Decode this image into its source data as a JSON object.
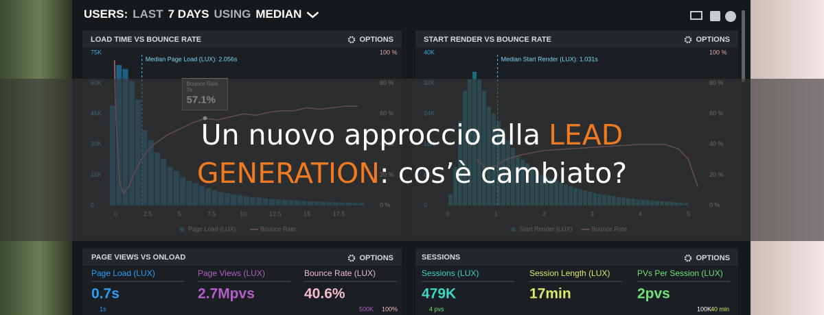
{
  "header": {
    "parts": [
      {
        "text": "USERS:",
        "color": "#ffffff"
      },
      {
        "text": "LAST",
        "color": "#a9b3b3"
      },
      {
        "text": "7 DAYS",
        "color": "#ffffff"
      },
      {
        "text": "USING",
        "color": "#a9b3b3"
      },
      {
        "text": "MEDIAN",
        "color": "#ffffff"
      }
    ]
  },
  "chart_data": [
    {
      "type": "histogram",
      "title": "LOAD TIME VS BOUNCE RATE",
      "options_label": "OPTIONS",
      "xlim": [
        -1,
        20
      ],
      "xticks": [
        0,
        2.5,
        5,
        7.5,
        10,
        12.5,
        15,
        17.5
      ],
      "ylim": [
        0,
        75000
      ],
      "yticks": [
        0,
        {
          "value": 15000,
          "label": "15K"
        },
        {
          "value": 30000,
          "label": "30K"
        },
        {
          "value": 45000,
          "label": "45K"
        },
        {
          "value": 60000,
          "label": "60K"
        },
        {
          "value": 75000,
          "label": "75K"
        }
      ],
      "y2lim": [
        0,
        100
      ],
      "y2ticks": [
        {
          "value": 0,
          "label": "0 %"
        },
        {
          "value": 20,
          "label": "20 %"
        },
        {
          "value": 40,
          "label": "40 %"
        },
        {
          "value": 60,
          "label": "60 %"
        },
        {
          "value": 80,
          "label": "80 %"
        },
        {
          "value": 100,
          "label": "100 %"
        }
      ],
      "series": [
        {
          "name": "Page Load (LUX)",
          "color": "#1f5f80",
          "bins": [
            -0.5,
            0,
            0.5,
            1,
            1.5,
            2,
            2.5,
            3,
            3.5,
            4,
            4.5,
            5,
            5.5,
            6,
            6.5,
            7,
            7.5,
            8,
            8.5,
            9,
            9.5,
            10,
            10.5,
            11,
            11.5,
            12,
            12.5,
            13,
            13.5,
            14,
            14.5,
            15,
            15.5,
            16,
            16.5,
            17,
            17.5,
            18,
            18.5,
            19,
            19.5
          ],
          "values": [
            49000,
            69000,
            67000,
            61000,
            52000,
            37000,
            32000,
            26000,
            23000,
            19000,
            17000,
            14000,
            12000,
            11000,
            9500,
            8500,
            7500,
            6500,
            6000,
            5500,
            5000,
            4500,
            4000,
            3800,
            3500,
            3200,
            3000,
            2800,
            2600,
            2400,
            2200,
            2000,
            1900,
            1800,
            1700,
            1600,
            1500,
            1400,
            1300,
            1200
          ]
        },
        {
          "name": "Bounce Rate",
          "color": "#a86b78",
          "axis": "y2",
          "x": [
            -0.1,
            0,
            0.3,
            0.6,
            1,
            1.5,
            2,
            2.5,
            3,
            4,
            5,
            6,
            7,
            8,
            9,
            10,
            11,
            12,
            13,
            14,
            15,
            16,
            17,
            18,
            19
          ],
          "values": [
            95,
            60,
            15,
            8,
            12,
            22,
            30,
            36,
            40,
            46,
            50,
            54,
            57,
            56,
            58,
            60,
            59,
            61,
            62,
            62,
            64,
            63,
            64,
            65,
            65
          ]
        }
      ],
      "annotations": [
        {
          "text": "Median Page Load (LUX): 2.056s",
          "x": 2.056
        }
      ],
      "tooltip": {
        "label": "Bounce Rate",
        "x": 7,
        "x_label": "7s",
        "value": 57.1,
        "value_label": "57.1%"
      }
    },
    {
      "type": "histogram",
      "title": "START RENDER VS BOUNCE RATE",
      "options_label": "OPTIONS",
      "xlim": [
        -0.25,
        5.25
      ],
      "xticks": [
        0,
        1,
        2,
        3,
        4,
        5
      ],
      "ylim": [
        0,
        40000
      ],
      "yticks": [
        0,
        {
          "value": 8000,
          "label": "8K"
        },
        {
          "value": 16000,
          "label": "16K"
        },
        {
          "value": 24000,
          "label": "24K"
        },
        {
          "value": 32000,
          "label": "32K"
        },
        {
          "value": 40000,
          "label": "40K"
        }
      ],
      "y2lim": [
        0,
        100
      ],
      "y2ticks": [
        {
          "value": 0,
          "label": "0 %"
        },
        {
          "value": 20,
          "label": "20 %"
        },
        {
          "value": 40,
          "label": "40 %"
        },
        {
          "value": 60,
          "label": "60 %"
        },
        {
          "value": 80,
          "label": "80 %"
        },
        {
          "value": 100,
          "label": "100 %"
        }
      ],
      "series": [
        {
          "name": "Start Render (LUX)",
          "color": "#1d6b7a",
          "bins": [
            0,
            0.1,
            0.2,
            0.3,
            0.4,
            0.5,
            0.6,
            0.7,
            0.8,
            0.9,
            1,
            1.1,
            1.2,
            1.3,
            1.4,
            1.5,
            1.6,
            1.7,
            1.8,
            1.9,
            2,
            2.1,
            2.2,
            2.3,
            2.4,
            2.5,
            2.6,
            2.7,
            2.8,
            2.9,
            3,
            3.1,
            3.2,
            3.3,
            3.4,
            3.5,
            3.6,
            3.7,
            3.8,
            3.9,
            4,
            4.1,
            4.2,
            4.3,
            4.4,
            4.5,
            4.6,
            4.7,
            4.8,
            4.9,
            5
          ],
          "values": [
            3000,
            10000,
            22000,
            30000,
            33000,
            35000,
            33000,
            30000,
            26000,
            24000,
            22000,
            20000,
            17000,
            15000,
            13000,
            12000,
            11000,
            10000,
            9000,
            8000,
            7500,
            7000,
            6500,
            6000,
            5500,
            5000,
            4600,
            4200,
            3900,
            3600,
            3300,
            3000,
            2800,
            2600,
            2400,
            2200,
            2000,
            1900,
            1800,
            1600,
            1500,
            1400,
            1300,
            1200,
            1100,
            1000,
            900,
            800,
            700,
            600
          ]
        },
        {
          "name": "Bounce Rate",
          "color": "#a86b78",
          "axis": "y2",
          "x": [
            0.6,
            0.8,
            1,
            1.2,
            1.5,
            2,
            2.5,
            3,
            3.5,
            4,
            4.5,
            4.8,
            5,
            5.2
          ],
          "values": [
            30,
            24,
            26,
            30,
            33,
            36,
            37,
            38,
            39,
            40,
            40,
            37,
            30,
            12
          ]
        }
      ],
      "annotations": [
        {
          "text": "Median Start Render (LUX): 1.031s",
          "x": 1.031
        }
      ]
    }
  ],
  "panels": [
    {
      "title": "PAGE VIEWS VS ONLOAD",
      "options_label": "OPTIONS",
      "metrics": [
        {
          "label": "Page Load (LUX)",
          "value": "0.7s",
          "color": "#2a9df4"
        },
        {
          "label": "Page Views (LUX)",
          "value": "2.7Mpvs",
          "color": "#b45ec8"
        },
        {
          "label": "Bounce Rate (LUX)",
          "value": "40.6%",
          "color": "#f2bccb"
        }
      ],
      "footnotes": [
        {
          "text": "1s",
          "color": "#2a9df4"
        },
        {
          "text": "500K",
          "color": "#b45ec8"
        },
        {
          "text": "100%",
          "color": "#f2bccb"
        }
      ]
    },
    {
      "title": "SESSIONS",
      "options_label": "OPTIONS",
      "metrics": [
        {
          "label": "Sessions (LUX)",
          "value": "479K",
          "color": "#3fd3c3"
        },
        {
          "label": "Session Length (LUX)",
          "value": "17min",
          "color": "#d6ea6c"
        },
        {
          "label": "PVs Per Session (LUX)",
          "value": "2pvs",
          "color": "#6fe07a"
        }
      ],
      "footnotes": [
        {
          "text": "4 pvs",
          "color": "#6fe07a"
        },
        {
          "text": "100K",
          "color": "#ffffff"
        },
        {
          "text": "40 min",
          "color": "#d6ea6c"
        }
      ]
    }
  ],
  "headline": {
    "lines": [
      [
        {
          "text": "Un nuovo approccio alla",
          "color": "#ffffff"
        },
        {
          "text": "LEAD",
          "color": "#f07a22"
        }
      ],
      [
        {
          "text": "GENERATION",
          "color": "#f07a22"
        },
        {
          "text": ": cos’è cambiato?",
          "color": "#ffffff"
        }
      ]
    ]
  }
}
